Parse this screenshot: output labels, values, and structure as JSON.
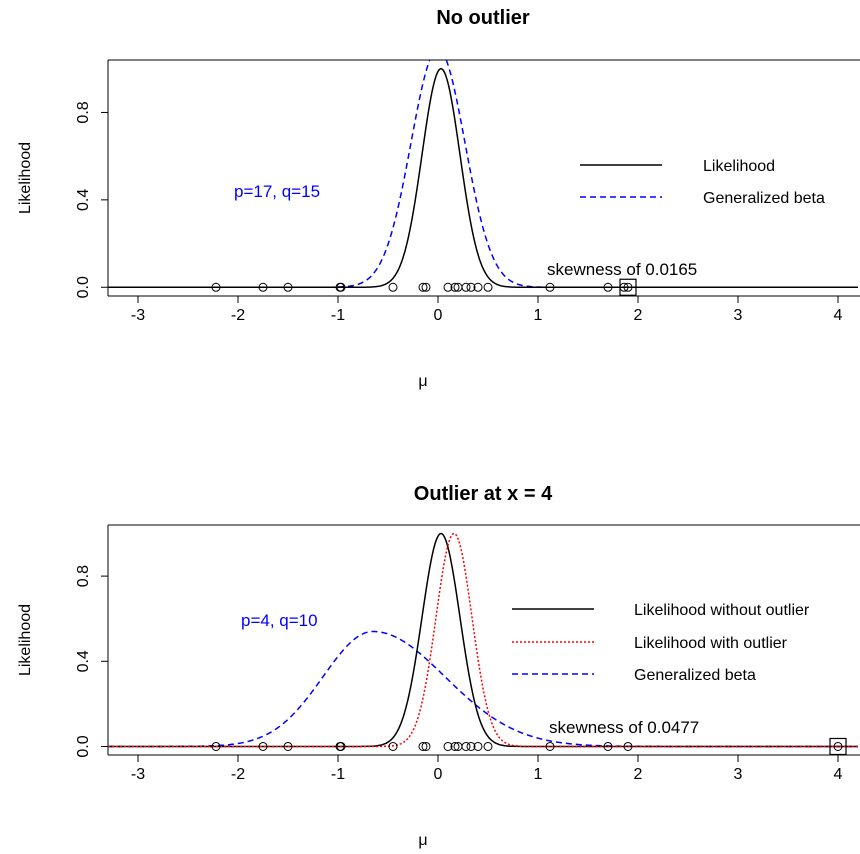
{
  "chart_data": [
    {
      "type": "line",
      "title": "No outlier",
      "xlabel": "μ",
      "ylabel": "Likelihood",
      "xlim": [
        -3.3,
        4.2
      ],
      "ylim": [
        -0.04,
        1.04
      ],
      "x_ticks": [
        "-3",
        "-2",
        "-1",
        "0",
        "1",
        "2",
        "3",
        "4"
      ],
      "y_ticks": [
        "0.0",
        "0.4",
        "0.8"
      ],
      "annotations": {
        "params": "p=17, q=15",
        "skewness": "skewness of 0.0165"
      },
      "legend": {
        "position": "right",
        "entries": [
          "Likelihood",
          "Generalized beta"
        ]
      },
      "series": [
        {
          "name": "Likelihood",
          "style": "solid",
          "color": "#000000",
          "mean": 0.03,
          "sd": 0.19,
          "peak": 1.0
        },
        {
          "name": "Generalized beta",
          "style": "dashed",
          "color": "#0000ff",
          "mean": 0.0,
          "sd": 0.27,
          "peak": 1.09
        }
      ],
      "data_points": [
        -2.22,
        -1.75,
        -1.5,
        -0.98,
        -0.97,
        -0.45,
        -0.15,
        -0.12,
        0.1,
        0.17,
        0.2,
        0.28,
        0.33,
        0.4,
        0.5,
        1.12,
        1.7,
        1.86,
        1.9
      ],
      "highlighted_point": 1.9
    },
    {
      "type": "line",
      "title": "Outlier at x = 4",
      "xlabel": "μ",
      "ylabel": "Likelihood",
      "xlim": [
        -3.3,
        4.2
      ],
      "ylim": [
        -0.04,
        1.04
      ],
      "x_ticks": [
        "-3",
        "-2",
        "-1",
        "0",
        "1",
        "2",
        "3",
        "4"
      ],
      "y_ticks": [
        "0.0",
        "0.4",
        "0.8"
      ],
      "annotations": {
        "params": "p=4, q=10",
        "skewness": "skewness of 0.0477"
      },
      "legend": {
        "position": "right",
        "entries": [
          "Likelihood without outlier",
          "Likelihood with outlier",
          "Generalized beta"
        ]
      },
      "series": [
        {
          "name": "Likelihood without outlier",
          "style": "solid",
          "color": "#000000",
          "mean": 0.03,
          "sd": 0.19,
          "peak": 1.0
        },
        {
          "name": "Likelihood with outlier",
          "style": "dotted",
          "color": "#ff0000",
          "mean": 0.16,
          "sd": 0.18,
          "peak": 1.0
        },
        {
          "name": "Generalized beta",
          "style": "dashed",
          "color": "#0000ff",
          "peak": 0.54,
          "mode": -0.65,
          "left_sd": 0.5,
          "right_sd": 0.72
        }
      ],
      "data_points": [
        -2.22,
        -1.75,
        -1.5,
        -0.98,
        -0.97,
        -0.45,
        -0.15,
        -0.12,
        0.1,
        0.17,
        0.2,
        0.28,
        0.33,
        0.4,
        0.5,
        1.12,
        1.7,
        1.9,
        4.0
      ],
      "highlighted_point": 4.0
    }
  ]
}
